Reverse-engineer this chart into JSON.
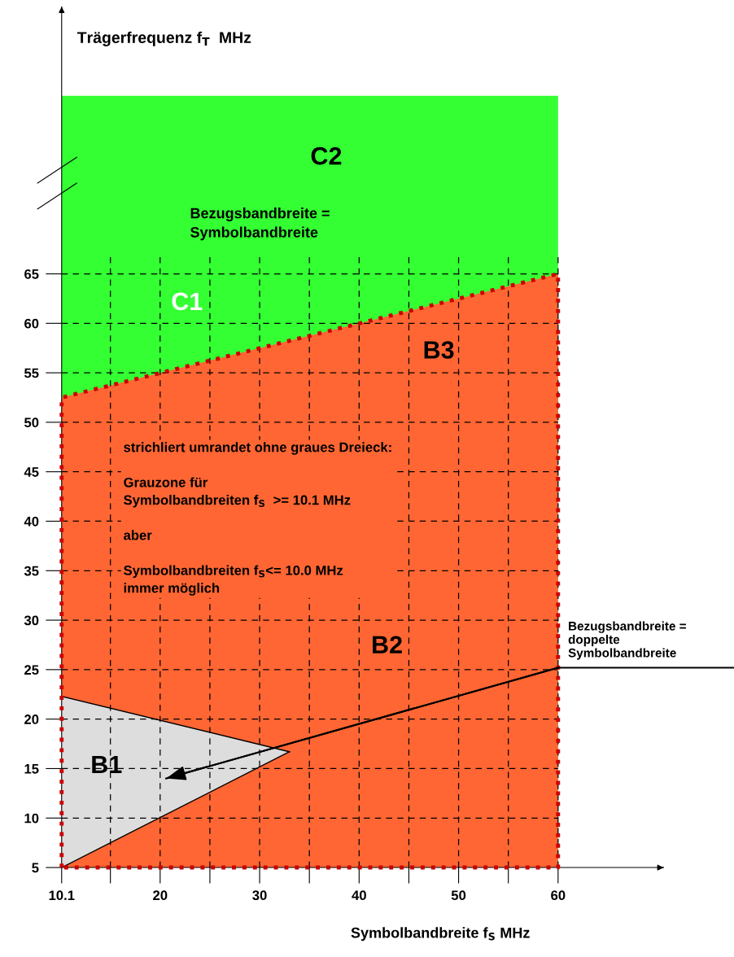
{
  "chart_data": {
    "type": "area",
    "xlabel": "Symbolbandbreite f$_{S}$ MHz",
    "ylabel": "Trägerfrequenz f$_{T}$  MHz",
    "xlim": [
      10.1,
      70.6
    ],
    "ylim": [
      5,
      92
    ],
    "xticks": [
      10.1,
      {
        "value": 15,
        "label": null
      },
      20,
      {
        "value": 25,
        "label": null
      },
      30,
      {
        "value": 35,
        "label": null
      },
      40,
      {
        "value": 45,
        "label": null
      },
      50,
      {
        "value": 55,
        "label": null
      },
      60
    ],
    "yticks": [
      5,
      10,
      15,
      20,
      25,
      30,
      35,
      40,
      45,
      50,
      55,
      60,
      65
    ],
    "grid": true,
    "series": [
      {
        "type": "area",
        "color": "#33ff33",
        "x": [
          10.1,
          60
        ],
        "values": [
          83,
          83
        ]
      },
      {
        "color": "#ff6633",
        "x": [
          10.1,
          60
        ],
        "values": [
          52.5,
          65
        ],
        "line_style": "dotted"
      },
      {
        "type": "area",
        "color": "#dddddd",
        "x": [
          10.1,
          33.0
        ],
        "values": [
          22.3,
          16.7
        ]
      },
      {
        "type": "line",
        "color": "#000000",
        "x": [
          10.1,
          33.0
        ],
        "values": [
          5,
          16.7
        ]
      },
      {
        "type": "line",
        "color": "#000000",
        "x": [
          20.6,
          60
        ],
        "values": [
          14.0,
          25.2
        ]
      }
    ],
    "annotations": [
      "C2",
      "Bezugsbandbreite =\nSymbolbandbreite",
      "C1",
      "B3",
      "strichliert umrandet ohne graues Dreieck:\n\nGrauzone für\nSymbolbandbreiten f$_{S}$  >= 10.1 MHz\n\naber\n\nSymbolbandbreiten f$_{S}$<= 10.0 MHz\nimmer möglich",
      "B2",
      "B1",
      "Bezugsbandbreite =\ndoppelte\nSymbolbandbreite"
    ]
  }
}
